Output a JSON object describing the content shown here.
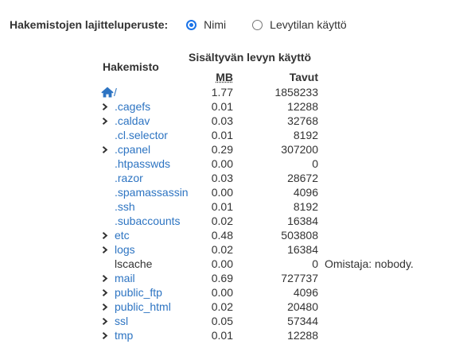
{
  "sort": {
    "label": "Hakemistojen lajitteluperuste:",
    "options": [
      {
        "label": "Nimi",
        "checked": true
      },
      {
        "label": "Levytilan käyttö",
        "checked": false
      }
    ]
  },
  "table": {
    "dir_header": "Hakemisto",
    "usage_header": "Sisältyvän levyn käyttö",
    "mb_header": "MB",
    "bytes_header": "Tavut",
    "rows": [
      {
        "name": "/",
        "mb": "1.77",
        "bytes": "1858233",
        "note": "",
        "expandable": false,
        "home": true,
        "link": true
      },
      {
        "name": ".cagefs",
        "mb": "0.01",
        "bytes": "12288",
        "note": "",
        "expandable": true,
        "home": false,
        "link": true
      },
      {
        "name": ".caldav",
        "mb": "0.03",
        "bytes": "32768",
        "note": "",
        "expandable": true,
        "home": false,
        "link": true
      },
      {
        "name": ".cl.selector",
        "mb": "0.01",
        "bytes": "8192",
        "note": "",
        "expandable": false,
        "home": false,
        "link": true
      },
      {
        "name": ".cpanel",
        "mb": "0.29",
        "bytes": "307200",
        "note": "",
        "expandable": true,
        "home": false,
        "link": true
      },
      {
        "name": ".htpasswds",
        "mb": "0.00",
        "bytes": "0",
        "note": "",
        "expandable": false,
        "home": false,
        "link": true
      },
      {
        "name": ".razor",
        "mb": "0.03",
        "bytes": "28672",
        "note": "",
        "expandable": false,
        "home": false,
        "link": true
      },
      {
        "name": ".spamassassin",
        "mb": "0.00",
        "bytes": "4096",
        "note": "",
        "expandable": false,
        "home": false,
        "link": true
      },
      {
        "name": ".ssh",
        "mb": "0.01",
        "bytes": "8192",
        "note": "",
        "expandable": false,
        "home": false,
        "link": true
      },
      {
        "name": ".subaccounts",
        "mb": "0.02",
        "bytes": "16384",
        "note": "",
        "expandable": false,
        "home": false,
        "link": true
      },
      {
        "name": "etc",
        "mb": "0.48",
        "bytes": "503808",
        "note": "",
        "expandable": true,
        "home": false,
        "link": true
      },
      {
        "name": "logs",
        "mb": "0.02",
        "bytes": "16384",
        "note": "",
        "expandable": true,
        "home": false,
        "link": true
      },
      {
        "name": "lscache",
        "mb": "0.00",
        "bytes": "0",
        "note": "Omistaja: nobody.",
        "expandable": false,
        "home": false,
        "link": false
      },
      {
        "name": "mail",
        "mb": "0.69",
        "bytes": "727737",
        "note": "",
        "expandable": true,
        "home": false,
        "link": true
      },
      {
        "name": "public_ftp",
        "mb": "0.00",
        "bytes": "4096",
        "note": "",
        "expandable": true,
        "home": false,
        "link": true
      },
      {
        "name": "public_html",
        "mb": "0.02",
        "bytes": "20480",
        "note": "",
        "expandable": true,
        "home": false,
        "link": true
      },
      {
        "name": "ssl",
        "mb": "0.05",
        "bytes": "57344",
        "note": "",
        "expandable": true,
        "home": false,
        "link": true
      },
      {
        "name": "tmp",
        "mb": "0.01",
        "bytes": "12288",
        "note": "",
        "expandable": true,
        "home": false,
        "link": true
      }
    ]
  },
  "colors": {
    "link": "#2d74c2",
    "text": "#333333",
    "radio_accent": "#1a73e8"
  },
  "icons": {
    "home": "home-icon",
    "expand": "chevron-right-icon"
  }
}
